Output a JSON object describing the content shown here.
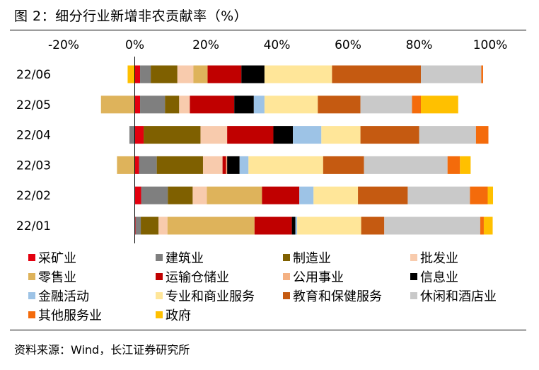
{
  "figure_title": "图 2：细分行业新增非农贡献率（%）",
  "source": "资料来源：Wind，长江证券研究所",
  "chart_data": {
    "type": "bar",
    "orientation": "horizontal",
    "stacked": true,
    "categories": [
      "22/06",
      "22/05",
      "22/04",
      "22/03",
      "22/02",
      "22/01"
    ],
    "x_ticks": [
      "-20%",
      "0%",
      "20%",
      "40%",
      "60%",
      "80%",
      "100%"
    ],
    "xlim": [
      -20,
      100
    ],
    "x_axis_position": "top",
    "grid": false,
    "legend_position": "bottom",
    "series": [
      {
        "name": "采矿业",
        "color": "#e3000f",
        "values": [
          1.5,
          1.5,
          2.5,
          1.2,
          1.8,
          0.2
        ]
      },
      {
        "name": "建筑业",
        "color": "#7f7f7f",
        "values": [
          3.0,
          7.0,
          -1.5,
          5.0,
          7.5,
          1.5
        ]
      },
      {
        "name": "制造业",
        "color": "#7f6000",
        "values": [
          7.5,
          4.0,
          16.0,
          13.0,
          7.0,
          5.0
        ]
      },
      {
        "name": "批发业",
        "color": "#f8cbad",
        "values": [
          4.5,
          3.0,
          7.5,
          5.5,
          4.0,
          2.5
        ]
      },
      {
        "name": "零售业",
        "color": "#deb35b",
        "values": [
          4.0,
          -9.5,
          0.0,
          -5.0,
          15.5,
          24.5
        ]
      },
      {
        "name": "运输仓储业",
        "color": "#c00000",
        "values": [
          9.5,
          12.5,
          13.0,
          1.0,
          10.5,
          10.5
        ]
      },
      {
        "name": "公用事业",
        "color": "#f4b183",
        "values": [
          0.0,
          0.0,
          0.0,
          0.3,
          0.0,
          0.0
        ]
      },
      {
        "name": "信息业",
        "color": "#000000",
        "values": [
          6.5,
          5.5,
          5.5,
          3.5,
          0.0,
          1.0
        ]
      },
      {
        "name": "金融活动",
        "color": "#9dc3e6",
        "values": [
          0.0,
          3.0,
          8.0,
          2.5,
          4.0,
          0.5
        ]
      },
      {
        "name": "专业和商业服务",
        "color": "#ffe699",
        "values": [
          19.0,
          15.0,
          11.0,
          21.0,
          12.5,
          18.0
        ]
      },
      {
        "name": "教育和保健服务",
        "color": "#c55a11",
        "values": [
          25.0,
          12.0,
          16.5,
          11.5,
          14.0,
          6.5
        ]
      },
      {
        "name": "休闲和酒店业",
        "color": "#c9c9c9",
        "values": [
          17.0,
          14.5,
          16.0,
          23.5,
          17.5,
          27.0
        ]
      },
      {
        "name": "其他服务业",
        "color": "#f46b0b",
        "values": [
          0.5,
          2.5,
          3.5,
          3.5,
          5.0,
          1.0
        ]
      },
      {
        "name": "政府",
        "color": "#ffc000",
        "values": [
          -2.0,
          10.5,
          0.0,
          3.0,
          1.5,
          2.5
        ]
      }
    ]
  }
}
